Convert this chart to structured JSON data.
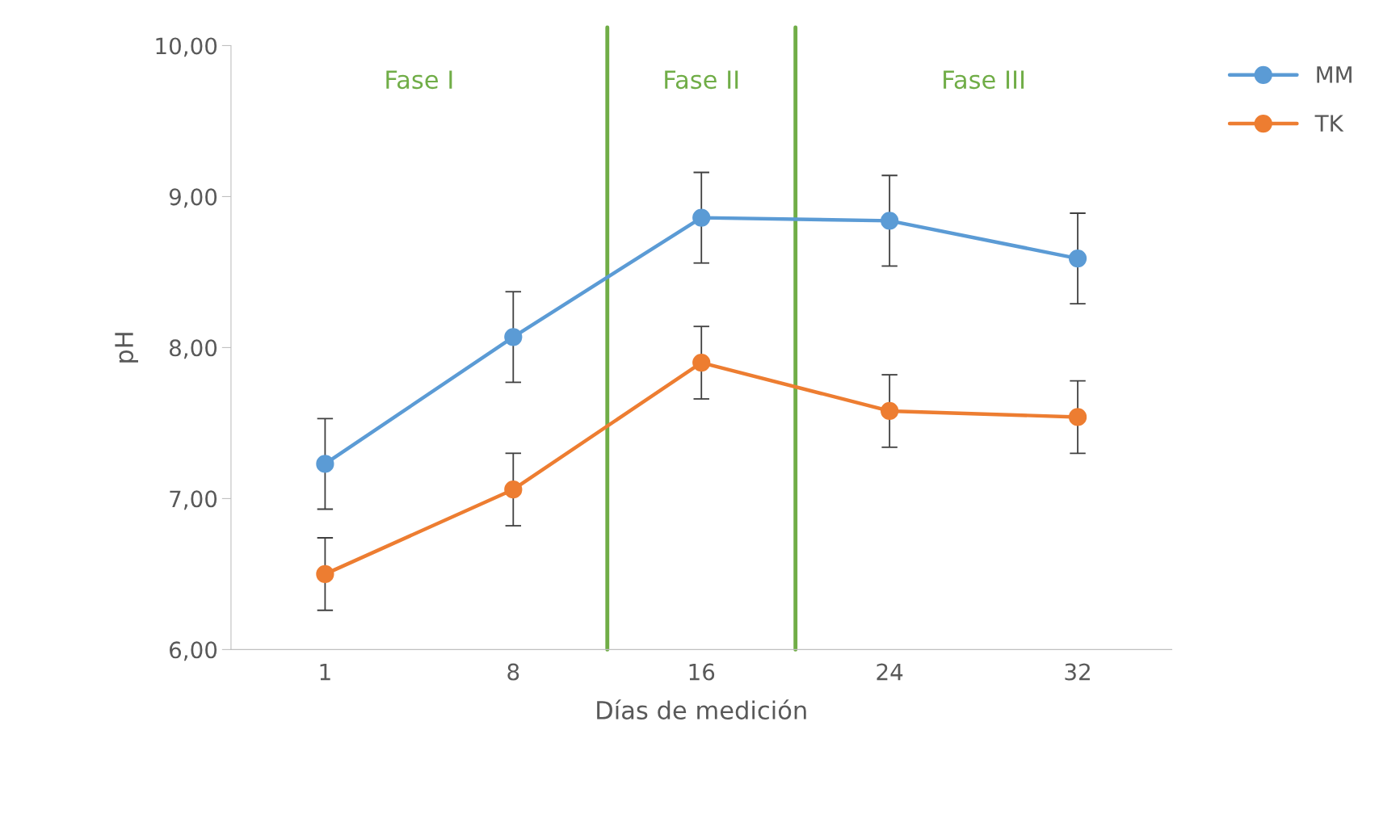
{
  "chart_data": {
    "type": "line",
    "xlabel": "Días de medición",
    "ylabel": "pH",
    "categories": [
      "1",
      "8",
      "16",
      "24",
      "32"
    ],
    "series": [
      {
        "name": "MM",
        "color": "#5b9bd5",
        "values": [
          7.23,
          8.07,
          8.86,
          8.84,
          8.59
        ],
        "errors": [
          0.3,
          0.3,
          0.3,
          0.3,
          0.3
        ]
      },
      {
        "name": "TK",
        "color": "#ed7d31",
        "values": [
          6.5,
          7.06,
          7.9,
          7.58,
          7.54
        ],
        "errors": [
          0.24,
          0.24,
          0.24,
          0.24,
          0.24
        ]
      }
    ],
    "ylim": [
      6,
      10
    ],
    "yticks": [
      {
        "value": 6,
        "label": "6,00"
      },
      {
        "value": 7,
        "label": "7,00"
      },
      {
        "value": 8,
        "label": "8,00"
      },
      {
        "value": 9,
        "label": "9,00"
      },
      {
        "value": 10,
        "label": "10,00"
      }
    ],
    "annotations": [
      "Fase I",
      "Fase II",
      "Fase III"
    ],
    "marker": "circle",
    "line_style": "solid",
    "grid": false,
    "legend": "top right"
  }
}
